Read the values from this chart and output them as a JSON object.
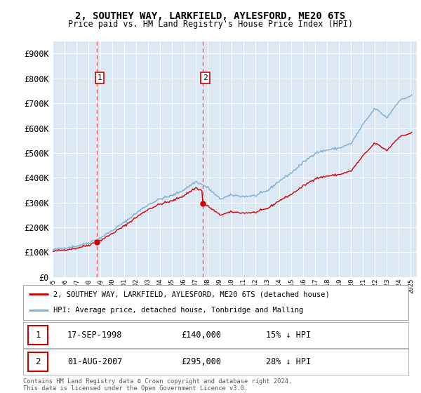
{
  "title1": "2, SOUTHEY WAY, LARKFIELD, AYLESFORD, ME20 6TS",
  "title2": "Price paid vs. HM Land Registry's House Price Index (HPI)",
  "legend1": "2, SOUTHEY WAY, LARKFIELD, AYLESFORD, ME20 6TS (detached house)",
  "legend2": "HPI: Average price, detached house, Tonbridge and Malling",
  "sale1_date": "17-SEP-1998",
  "sale1_price": 140000,
  "sale1_text": "15% ↓ HPI",
  "sale2_date": "01-AUG-2007",
  "sale2_price": 295000,
  "sale2_text": "28% ↓ HPI",
  "footer": "Contains HM Land Registry data © Crown copyright and database right 2024.\nThis data is licensed under the Open Government Licence v3.0.",
  "hpi_color": "#7aadd4",
  "price_color": "#cc0000",
  "vline_color": "#ff5555",
  "box_color": "#cc0000",
  "background_color": "#dde8f5",
  "ylim": [
    0,
    950000
  ],
  "sale1_x": 1998.72,
  "sale2_x": 2007.58,
  "hpi_anchors_x": [
    1995.0,
    1996.0,
    1997.0,
    1998.0,
    1999.0,
    2000.0,
    2001.0,
    2002.0,
    2003.0,
    2004.0,
    2005.0,
    2006.0,
    2007.0,
    2008.0,
    2009.0,
    2010.0,
    2011.0,
    2012.0,
    2013.0,
    2014.0,
    2015.0,
    2016.0,
    2017.0,
    2018.0,
    2019.0,
    2020.0,
    2021.0,
    2022.0,
    2023.0,
    2024.0,
    2025.0
  ],
  "hpi_anchors_y": [
    110000,
    118000,
    125000,
    138000,
    158000,
    188000,
    220000,
    258000,
    292000,
    315000,
    328000,
    352000,
    385000,
    360000,
    315000,
    330000,
    325000,
    328000,
    348000,
    388000,
    420000,
    462000,
    500000,
    512000,
    520000,
    538000,
    615000,
    680000,
    642000,
    710000,
    730000
  ]
}
